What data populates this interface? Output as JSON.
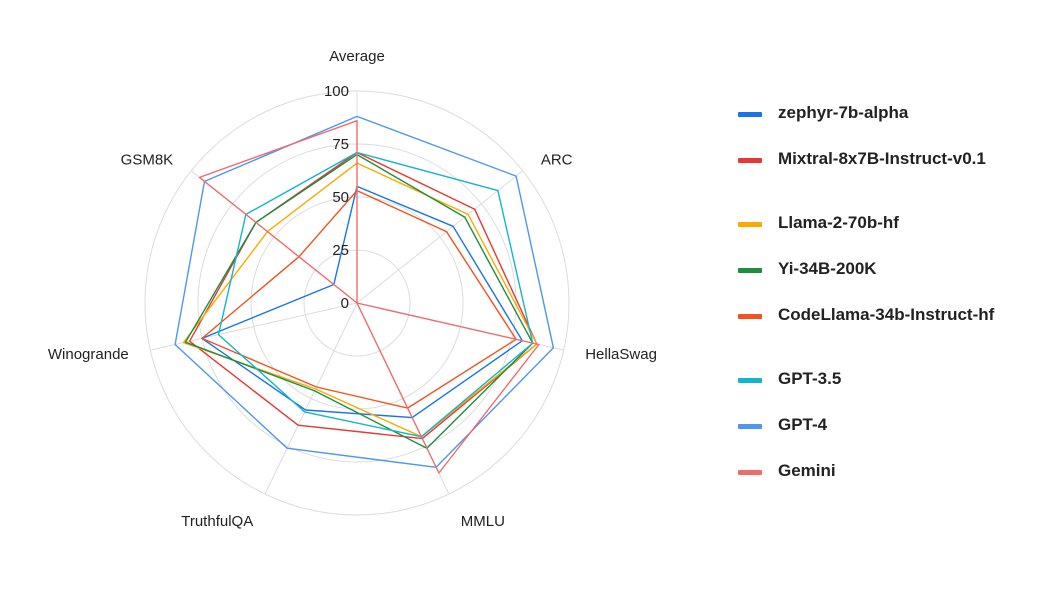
{
  "chart_data": {
    "type": "radar",
    "axes": [
      "Average",
      "ARC",
      "HellaSwag",
      "MMLU",
      "TruthfulQA",
      "Winogrande",
      "GSM8K"
    ],
    "rlim": [
      0,
      100
    ],
    "ring_ticks": [
      "0",
      "25",
      "50",
      "75",
      "100"
    ],
    "grid": true,
    "legend_position": "right",
    "series": [
      {
        "name": "zephyr-7b-alpha",
        "color": "#1a73e8",
        "values": [
          55,
          58,
          80,
          60,
          56,
          75,
          14
        ]
      },
      {
        "name": "Mixtral-8x7B-Instruct-v0.1",
        "color": "#e53935",
        "values": [
          71,
          71,
          87,
          71,
          64,
          81,
          61
        ]
      },
      {
        "name": "Llama-2-70b-hf",
        "color": "#f9ab00",
        "values": [
          66,
          67,
          87,
          70,
          45,
          84,
          54
        ]
      },
      {
        "name": "Yi-34B-200K",
        "color": "#1e8e3e",
        "values": [
          70,
          65,
          85,
          76,
          46,
          83,
          61
        ]
      },
      {
        "name": "CodeLlama-34b-Instruct-hf",
        "color": "#f4511e",
        "values": [
          53,
          54,
          77,
          55,
          44,
          75,
          35
        ]
      },
      {
        "name": "GPT-3.5",
        "color": "#12b5cb",
        "values": [
          71,
          85,
          85,
          70,
          57,
          67,
          67
        ]
      },
      {
        "name": "GPT-4",
        "color": "#4f96f0",
        "values": [
          88,
          96,
          95,
          86,
          76,
          88,
          92
        ]
      },
      {
        "name": "Gemini",
        "color": "#ef6c6c",
        "values": [
          86,
          0,
          88,
          89,
          0,
          0,
          95
        ]
      }
    ]
  }
}
